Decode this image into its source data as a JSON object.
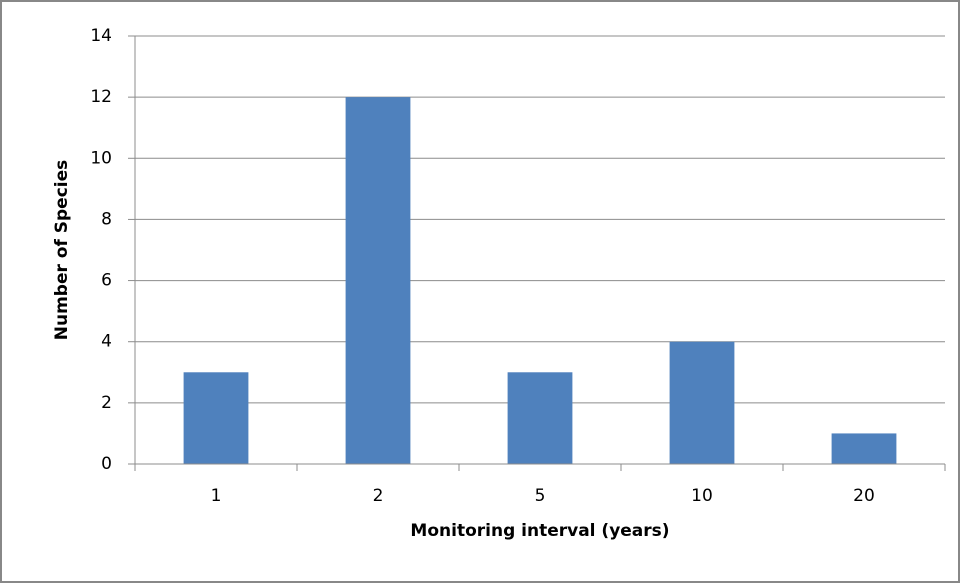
{
  "chart_data": {
    "type": "bar",
    "x_label": "Monitoring interval (years)",
    "y_label": "Number of Species",
    "categories": [
      "1",
      "2",
      "5",
      "10",
      "20"
    ],
    "values": [
      3,
      12,
      3,
      4,
      1
    ],
    "color": "#4f81bd",
    "ylim": [
      0,
      14
    ],
    "yticks": [
      0,
      2,
      4,
      6,
      8,
      10,
      12,
      14
    ],
    "grid": true
  }
}
